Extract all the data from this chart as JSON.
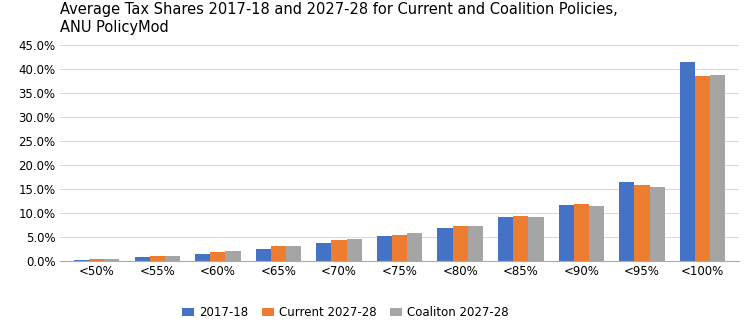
{
  "title": "Average Tax Shares 2017-18 and 2027-28 for Current and Coalition Policies,\nANU PolicyMod",
  "categories": [
    "<50%",
    "<55%",
    "<60%",
    "<65%",
    "<70%",
    "<75%",
    "<80%",
    "<85%",
    "<90%",
    "<95%",
    "<100%"
  ],
  "series": {
    "2017-18": [
      0.002,
      0.007,
      0.014,
      0.025,
      0.037,
      0.051,
      0.068,
      0.09,
      0.116,
      0.163,
      0.415
    ],
    "Current 2027-28": [
      0.004,
      0.01,
      0.018,
      0.031,
      0.043,
      0.054,
      0.071,
      0.092,
      0.117,
      0.157,
      0.385
    ],
    "Coaliton 2027-28": [
      0.004,
      0.01,
      0.02,
      0.03,
      0.044,
      0.057,
      0.071,
      0.091,
      0.114,
      0.154,
      0.388
    ]
  },
  "colors": {
    "2017-18": "#4472C4",
    "Current 2027-28": "#ED7D31",
    "Coaliton 2027-28": "#A5A5A5"
  },
  "ylim": [
    0.0,
    0.46
  ],
  "yticks": [
    0.0,
    0.05,
    0.1,
    0.15,
    0.2,
    0.25,
    0.3,
    0.35,
    0.4,
    0.45
  ],
  "background_color": "#FFFFFF",
  "title_fontsize": 10.5,
  "tick_fontsize": 8.5,
  "legend_fontsize": 8.5,
  "bar_width": 0.25
}
